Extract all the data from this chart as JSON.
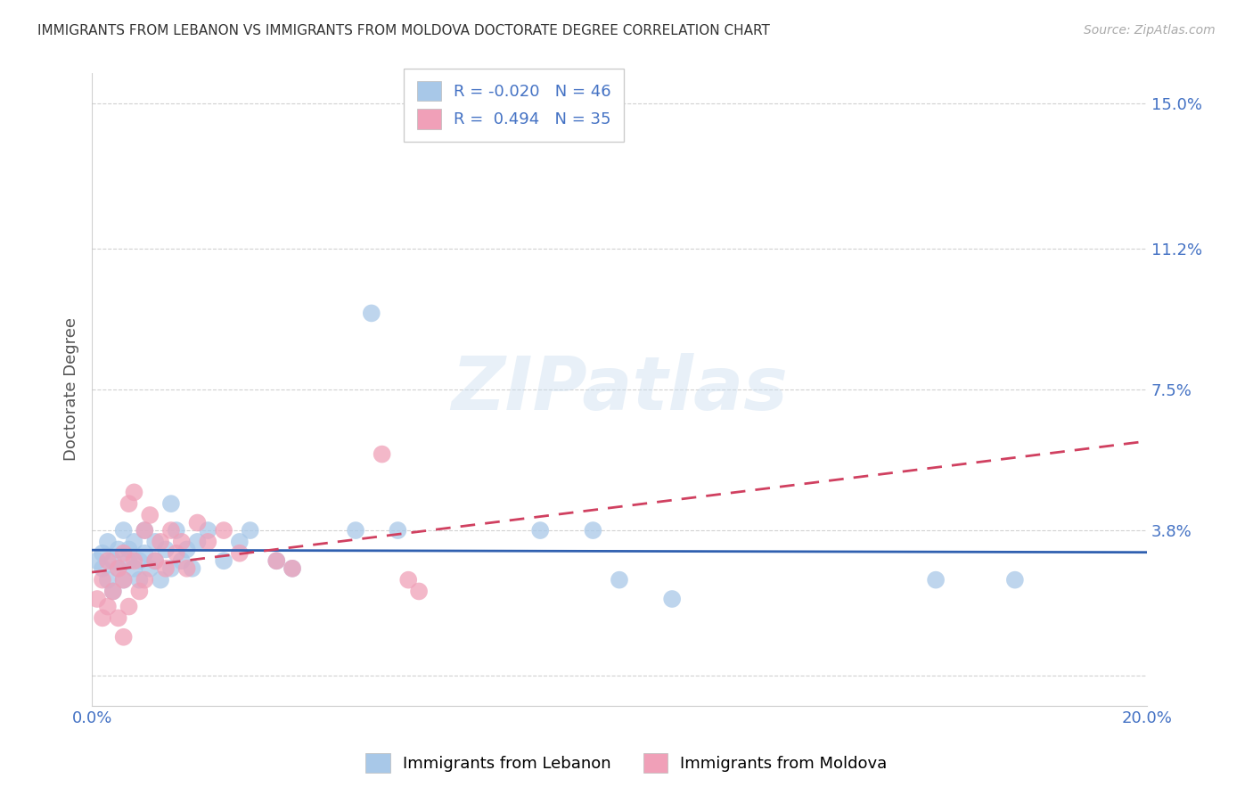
{
  "title": "IMMIGRANTS FROM LEBANON VS IMMIGRANTS FROM MOLDOVA DOCTORATE DEGREE CORRELATION CHART",
  "source": "Source: ZipAtlas.com",
  "ylabel": "Doctorate Degree",
  "xlim": [
    0.0,
    0.2
  ],
  "ylim": [
    -0.008,
    0.158
  ],
  "ytick_vals": [
    0.0,
    0.038,
    0.075,
    0.112,
    0.15
  ],
  "ytick_labels": [
    "",
    "3.8%",
    "7.5%",
    "11.2%",
    "15.0%"
  ],
  "xtick_vals": [
    0.0,
    0.05,
    0.1,
    0.15,
    0.2
  ],
  "xtick_labels": [
    "0.0%",
    "",
    "",
    "",
    "20.0%"
  ],
  "legend_R1": "-0.020",
  "legend_N1": "46",
  "legend_R2": " 0.494",
  "legend_N2": "35",
  "color_lebanon": "#a8c8e8",
  "color_moldova": "#f0a0b8",
  "line_color_lebanon": "#3060b0",
  "line_color_moldova": "#d04060",
  "background_color": "#ffffff",
  "watermark": "ZIPatlas",
  "leb_pts": [
    [
      0.001,
      0.03
    ],
    [
      0.002,
      0.028
    ],
    [
      0.002,
      0.032
    ],
    [
      0.003,
      0.025
    ],
    [
      0.003,
      0.035
    ],
    [
      0.004,
      0.03
    ],
    [
      0.004,
      0.022
    ],
    [
      0.005,
      0.033
    ],
    [
      0.005,
      0.028
    ],
    [
      0.006,
      0.038
    ],
    [
      0.006,
      0.025
    ],
    [
      0.007,
      0.03
    ],
    [
      0.007,
      0.033
    ],
    [
      0.008,
      0.028
    ],
    [
      0.008,
      0.035
    ],
    [
      0.009,
      0.025
    ],
    [
      0.009,
      0.03
    ],
    [
      0.01,
      0.038
    ],
    [
      0.01,
      0.032
    ],
    [
      0.011,
      0.028
    ],
    [
      0.012,
      0.035
    ],
    [
      0.012,
      0.03
    ],
    [
      0.013,
      0.025
    ],
    [
      0.014,
      0.033
    ],
    [
      0.015,
      0.028
    ],
    [
      0.015,
      0.045
    ],
    [
      0.016,
      0.038
    ],
    [
      0.017,
      0.03
    ],
    [
      0.018,
      0.033
    ],
    [
      0.019,
      0.028
    ],
    [
      0.02,
      0.035
    ],
    [
      0.022,
      0.038
    ],
    [
      0.025,
      0.03
    ],
    [
      0.028,
      0.035
    ],
    [
      0.03,
      0.038
    ],
    [
      0.035,
      0.03
    ],
    [
      0.038,
      0.028
    ],
    [
      0.05,
      0.038
    ],
    [
      0.053,
      0.095
    ],
    [
      0.058,
      0.038
    ],
    [
      0.085,
      0.038
    ],
    [
      0.095,
      0.038
    ],
    [
      0.1,
      0.025
    ],
    [
      0.11,
      0.02
    ],
    [
      0.16,
      0.025
    ],
    [
      0.175,
      0.025
    ]
  ],
  "mol_pts": [
    [
      0.001,
      0.02
    ],
    [
      0.002,
      0.015
    ],
    [
      0.002,
      0.025
    ],
    [
      0.003,
      0.018
    ],
    [
      0.003,
      0.03
    ],
    [
      0.004,
      0.022
    ],
    [
      0.005,
      0.028
    ],
    [
      0.005,
      0.015
    ],
    [
      0.006,
      0.032
    ],
    [
      0.006,
      0.025
    ],
    [
      0.007,
      0.018
    ],
    [
      0.007,
      0.045
    ],
    [
      0.008,
      0.03
    ],
    [
      0.008,
      0.048
    ],
    [
      0.009,
      0.022
    ],
    [
      0.01,
      0.038
    ],
    [
      0.01,
      0.025
    ],
    [
      0.011,
      0.042
    ],
    [
      0.012,
      0.03
    ],
    [
      0.013,
      0.035
    ],
    [
      0.014,
      0.028
    ],
    [
      0.015,
      0.038
    ],
    [
      0.016,
      0.032
    ],
    [
      0.017,
      0.035
    ],
    [
      0.018,
      0.028
    ],
    [
      0.02,
      0.04
    ],
    [
      0.022,
      0.035
    ],
    [
      0.025,
      0.038
    ],
    [
      0.028,
      0.032
    ],
    [
      0.035,
      0.03
    ],
    [
      0.038,
      0.028
    ],
    [
      0.055,
      0.058
    ],
    [
      0.06,
      0.025
    ],
    [
      0.062,
      0.022
    ],
    [
      0.006,
      0.01
    ]
  ]
}
